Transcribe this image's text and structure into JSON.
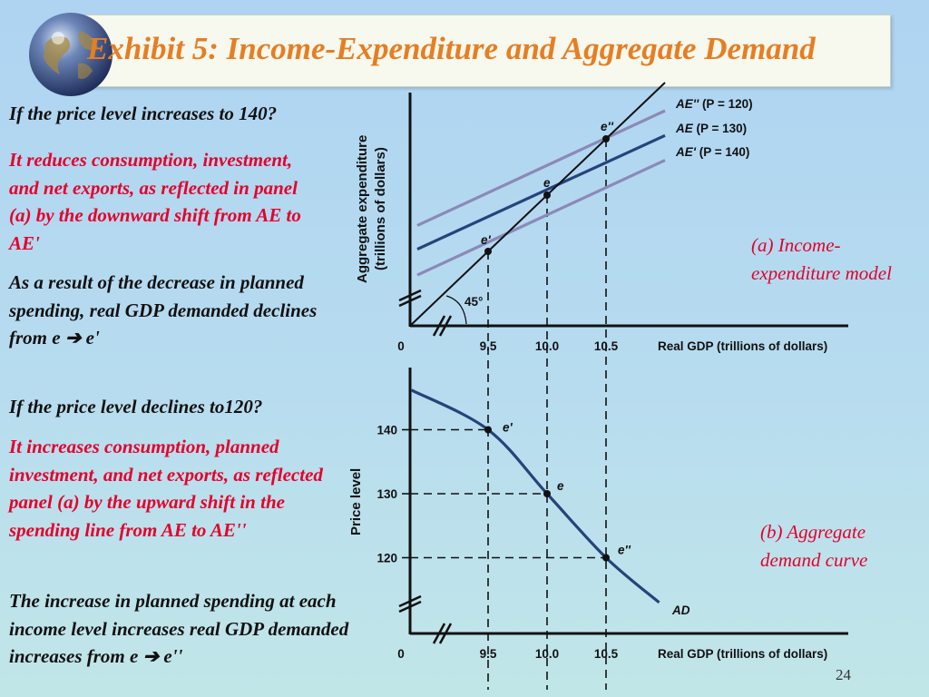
{
  "slide": {
    "title": "Exhibit 5: Income-Expenditure and Aggregate Demand",
    "page_number": "24"
  },
  "text": {
    "q1": "If the price level increases to 140?",
    "a1": "It reduces consumption, investment, and net exports, as reflected in  panel (a) by the downward shift from AE to AE'",
    "r1": "As a result of the decrease in planned spending, real GDP demanded declines from e ➔ e'",
    "q2": "If the price level declines to120?",
    "a2": "It  increases consumption, planned investment, and net exports, as reflected panel (a) by the upward shift in the spending line from AE to AE''",
    "r2": "The increase in planned spending at each income level increases real GDP demanded increases from e ➔ e''"
  },
  "panels": {
    "a_label": "(a) Income-expenditure model",
    "b_label": "(b) Aggregate demand curve"
  },
  "chart_data": [
    {
      "type": "line",
      "panel": "a",
      "ylabel": "Aggregate expenditure (trillions of dollars)",
      "xlabel": "Real GDP (trillions of dollars)",
      "x_ticks": [
        "0",
        "9.5",
        "10.0",
        "10.5"
      ],
      "angle_label": "45°",
      "series": [
        {
          "name": "AE'' (P = 120)",
          "color": "#8b89b8",
          "x": [
            8.9,
            11.0
          ],
          "y": [
            9.73,
            10.75
          ]
        },
        {
          "name": "AE (P = 130)",
          "color": "#26437a",
          "x": [
            8.9,
            11.0
          ],
          "y": [
            9.52,
            10.53
          ]
        },
        {
          "name": "AE' (P = 140)",
          "color": "#8b89b8",
          "x": [
            8.9,
            11.0
          ],
          "y": [
            9.29,
            10.31
          ]
        },
        {
          "name": "45-degree line",
          "color": "#111111",
          "x": [
            8.85,
            11.0
          ],
          "y": [
            8.85,
            11.0
          ]
        }
      ],
      "points": [
        {
          "label": "e'",
          "x": 9.5,
          "y": 9.5
        },
        {
          "label": "e",
          "x": 10.0,
          "y": 10.0
        },
        {
          "label": "e''",
          "x": 10.5,
          "y": 10.5
        }
      ]
    },
    {
      "type": "line",
      "panel": "b",
      "ylabel": "Price level",
      "xlabel": "Real GDP (trillions of dollars)",
      "x_ticks": [
        "0",
        "9.5",
        "10.0",
        "10.5"
      ],
      "y_ticks": [
        "120",
        "130",
        "140"
      ],
      "series": [
        {
          "name": "AD",
          "color": "#26437a",
          "x": [
            8.85,
            9.5,
            10.0,
            10.5,
            10.95
          ],
          "y": [
            146.2,
            140,
            130,
            120,
            113
          ]
        }
      ],
      "points": [
        {
          "label": "e'",
          "x": 9.5,
          "y": 140
        },
        {
          "label": "e",
          "x": 10.0,
          "y": 130
        },
        {
          "label": "e''",
          "x": 10.5,
          "y": 120
        }
      ]
    }
  ]
}
